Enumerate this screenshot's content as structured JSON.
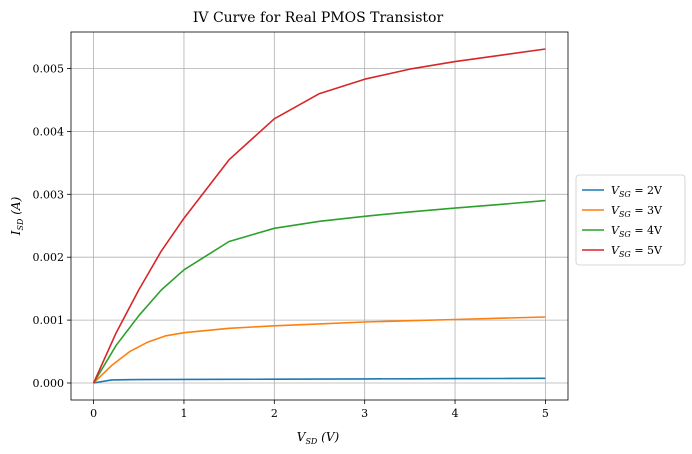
{
  "chart_data": {
    "type": "line",
    "title": "IV Curve for Real PMOS Transistor",
    "xlabel": "V_SD (V)",
    "ylabel": "I_SD (A)",
    "xlim": [
      -0.25,
      5.25
    ],
    "ylim": [
      -0.00027,
      0.00558
    ],
    "xticks": [
      0,
      1,
      2,
      3,
      4,
      5
    ],
    "xtick_labels": [
      "0",
      "1",
      "2",
      "3",
      "4",
      "5"
    ],
    "yticks": [
      0,
      0.001,
      0.002,
      0.003,
      0.004,
      0.005
    ],
    "ytick_labels": [
      "0.000",
      "0.001",
      "0.002",
      "0.003",
      "0.004",
      "0.005"
    ],
    "grid": true,
    "legend_position": "outside-right",
    "series": [
      {
        "name": "V_SG = 2V",
        "color": "#1f77b4",
        "x": [
          0,
          0.2,
          0.5,
          1,
          1.5,
          2,
          2.5,
          3,
          3.5,
          4,
          4.5,
          5
        ],
        "y": [
          0,
          5e-05,
          5.5e-05,
          5.7e-05,
          5.9e-05,
          6.1e-05,
          6.3e-05,
          6.5e-05,
          6.7e-05,
          7e-05,
          7.2e-05,
          7.5e-05
        ]
      },
      {
        "name": "V_SG = 3V",
        "color": "#ff7f0e",
        "x": [
          0,
          0.2,
          0.4,
          0.6,
          0.8,
          1,
          1.5,
          2,
          2.5,
          3,
          3.5,
          4,
          4.5,
          5
        ],
        "y": [
          0,
          0.00028,
          0.0005,
          0.00065,
          0.00075,
          0.0008,
          0.00087,
          0.00091,
          0.00094,
          0.00097,
          0.00099,
          0.00101,
          0.00103,
          0.00105
        ]
      },
      {
        "name": "V_SG = 4V",
        "color": "#2ca02c",
        "x": [
          0,
          0.25,
          0.5,
          0.75,
          1,
          1.5,
          2,
          2.5,
          3,
          3.5,
          4,
          4.5,
          5
        ],
        "y": [
          0,
          0.0006,
          0.00107,
          0.00148,
          0.0018,
          0.00225,
          0.00246,
          0.00257,
          0.00265,
          0.00272,
          0.00278,
          0.00284,
          0.0029
        ]
      },
      {
        "name": "V_SG = 5V",
        "color": "#d62728",
        "x": [
          0,
          0.25,
          0.5,
          0.75,
          1,
          1.5,
          2,
          2.5,
          3,
          3.5,
          4,
          4.5,
          5
        ],
        "y": [
          0,
          0.0008,
          0.00148,
          0.0021,
          0.00262,
          0.00355,
          0.0042,
          0.0046,
          0.00483,
          0.00499,
          0.00511,
          0.00521,
          0.00531
        ]
      }
    ]
  },
  "legend": {
    "items": [
      {
        "label_main": "V",
        "label_sub": "SG",
        "label_rest": " = 2V"
      },
      {
        "label_main": "V",
        "label_sub": "SG",
        "label_rest": " = 3V"
      },
      {
        "label_main": "V",
        "label_sub": "SG",
        "label_rest": " = 4V"
      },
      {
        "label_main": "V",
        "label_sub": "SG",
        "label_rest": " = 5V"
      }
    ]
  },
  "labels": {
    "x_main": "V",
    "x_sub": "SD",
    "x_rest": " (V)",
    "y_main": "I",
    "y_sub": "SD",
    "y_rest": " (A)"
  }
}
